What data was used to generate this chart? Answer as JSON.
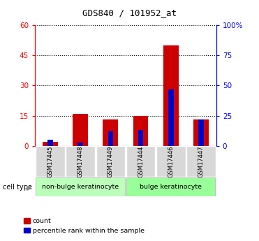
{
  "title": "GDS840 / 101952_at",
  "samples": [
    "GSM17445",
    "GSM17448",
    "GSM17449",
    "GSM17444",
    "GSM17446",
    "GSM17447"
  ],
  "count_values": [
    2,
    16,
    13,
    15,
    50,
    13
  ],
  "percentile_values": [
    5,
    3,
    12,
    13,
    47,
    22
  ],
  "left_ylim": [
    0,
    60
  ],
  "right_ylim": [
    0,
    100
  ],
  "left_yticks": [
    0,
    15,
    30,
    45,
    60
  ],
  "right_yticks": [
    0,
    25,
    50,
    75,
    100
  ],
  "right_yticklabels": [
    "0",
    "25",
    "50",
    "75",
    "100%"
  ],
  "bar_color_red": "#cc0000",
  "bar_color_blue": "#0000cc",
  "cell_type_label": "cell type",
  "group1_label": "non-bulge keratinocyte",
  "group2_label": "bulge keratinocyte",
  "group1_color": "#bbffbb",
  "group2_color": "#99ff99",
  "legend_count": "count",
  "legend_percentile": "percentile rank within the sample",
  "bg_color": "#d8d8d8",
  "bar_width": 0.5
}
